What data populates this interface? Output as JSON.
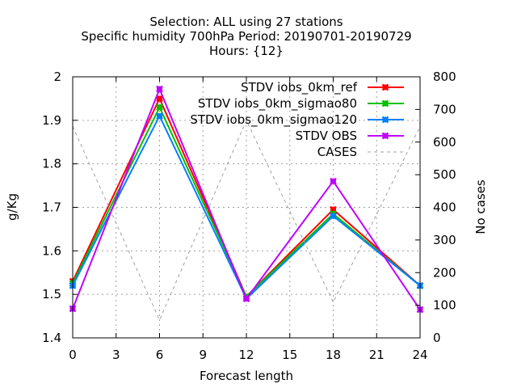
{
  "chart_data": {
    "type": "line",
    "title_lines": [
      "Selection: ALL using    27 stations",
      "Specific humidity 700hPa   Period: 20190701-20190729",
      "Hours: {12}"
    ],
    "xlabel": "Forecast length",
    "ylabel": "g/Kg",
    "y2label": "No cases",
    "x": [
      0,
      6,
      12,
      18,
      24
    ],
    "xticks": [
      0,
      3,
      6,
      9,
      12,
      15,
      18,
      21,
      24
    ],
    "xlim": [
      0,
      24
    ],
    "ylim": [
      1.4,
      2.0
    ],
    "yticks": [
      1.4,
      1.5,
      1.6,
      1.7,
      1.8,
      1.9,
      2.0
    ],
    "ytick_labels": [
      "1.4",
      "1.5",
      "1.6",
      "1.7",
      "1.8",
      "1.9",
      "2"
    ],
    "y2lim": [
      0,
      800
    ],
    "y2ticks": [
      0,
      100,
      200,
      300,
      400,
      500,
      600,
      700,
      800
    ],
    "grid": true,
    "legend_position": "top-right",
    "series": [
      {
        "name": "STDV iobs_0km_ref",
        "color": "#ff0000",
        "axis": "y",
        "values": [
          1.53,
          1.95,
          1.495,
          1.695,
          1.52
        ]
      },
      {
        "name": "STDV iobs_0km_sigmao80",
        "color": "#00c000",
        "axis": "y",
        "values": [
          1.525,
          1.93,
          1.495,
          1.685,
          1.52
        ]
      },
      {
        "name": "STDV iobs_0km_sigmao120",
        "color": "#0080ff",
        "axis": "y",
        "values": [
          1.52,
          1.91,
          1.49,
          1.68,
          1.52
        ]
      },
      {
        "name": "STDV OBS",
        "color": "#c000ff",
        "axis": "y",
        "values": [
          1.467,
          1.972,
          1.49,
          1.76,
          1.465
        ]
      },
      {
        "name": "CASES",
        "color": "#a0a0a0",
        "axis": "y2",
        "dashed": true,
        "values": [
          648,
          55,
          666,
          109,
          648
        ]
      }
    ]
  }
}
